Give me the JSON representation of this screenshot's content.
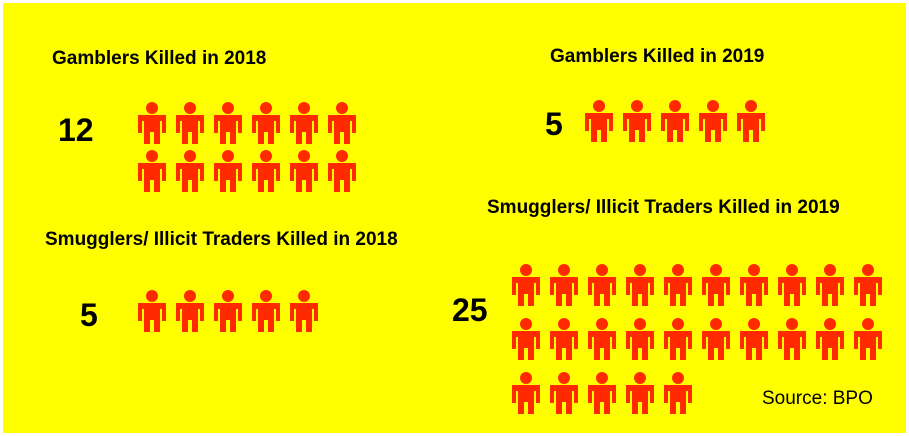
{
  "chart_data": [
    {
      "type": "pictogram",
      "title": "Gamblers Killed in 2018",
      "value": 12,
      "color": "#ff2a00"
    },
    {
      "type": "pictogram",
      "title": "Gamblers Killed in 2019",
      "value": 5,
      "color": "#ff2a00"
    },
    {
      "type": "pictogram",
      "title": "Smugglers/ Illicit Traders Killed in 2018",
      "value": 5,
      "color": "#ff2a00"
    },
    {
      "type": "pictogram",
      "title": "Smugglers/ Illicit Traders Killed in 2019",
      "value": 25,
      "color": "#ff2a00"
    }
  ],
  "source": "Source: BPO"
}
